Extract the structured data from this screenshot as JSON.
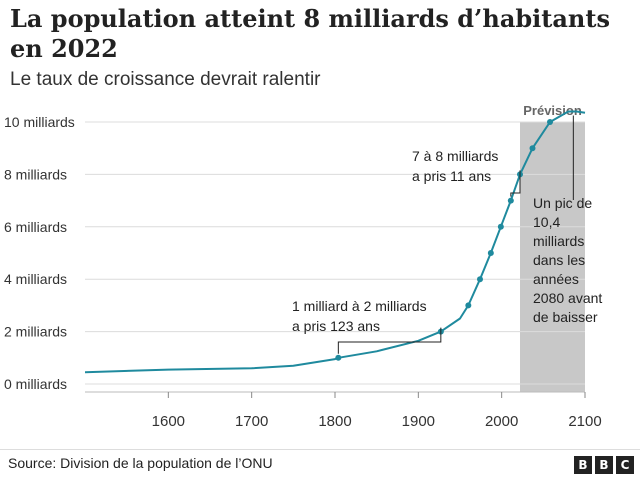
{
  "title": "La population atteint 8 milliards d’habitants en 2022",
  "subtitle": "Le taux de croissance devrait ralentir",
  "source": "Source: Division de la population de l’ONU",
  "logo_letters": [
    "B",
    "B",
    "C"
  ],
  "colors": {
    "line": "#1f8a9e",
    "forecast_band": "#c8c8c8",
    "grid": "#dcdcdc",
    "text": "#222222"
  },
  "chart_data": {
    "type": "line",
    "x_ticks": [
      1600,
      1700,
      1800,
      1900,
      2000,
      2100
    ],
    "y_ticks": [
      {
        "value": 0,
        "label": "0 milliards"
      },
      {
        "value": 2,
        "label": "2 milliards"
      },
      {
        "value": 4,
        "label": "4 milliards"
      },
      {
        "value": 6,
        "label": "6 milliards"
      },
      {
        "value": 8,
        "label": "8 milliards"
      },
      {
        "value": 10,
        "label": "10 milliards"
      }
    ],
    "xlim": [
      1500,
      2100
    ],
    "ylim": [
      0,
      10
    ],
    "grid": true,
    "series": [
      {
        "x": [
          1500,
          1600,
          1700,
          1750,
          1800,
          1804,
          1850,
          1900,
          1927,
          1950,
          1960,
          1974,
          1987,
          1999,
          2011,
          2022,
          2037,
          2058,
          2080,
          2090,
          2100
        ],
        "values": [
          0.45,
          0.55,
          0.6,
          0.7,
          0.95,
          1.0,
          1.25,
          1.65,
          2.0,
          2.5,
          3.0,
          4.0,
          5.0,
          6.0,
          7.0,
          8.0,
          9.0,
          10.0,
          10.4,
          10.4,
          10.35
        ]
      }
    ],
    "markers": [
      {
        "year": 1804,
        "value": 1
      },
      {
        "year": 1927,
        "value": 2
      },
      {
        "year": 1960,
        "value": 3
      },
      {
        "year": 1974,
        "value": 4
      },
      {
        "year": 1987,
        "value": 5
      },
      {
        "year": 1999,
        "value": 6
      },
      {
        "year": 2011,
        "value": 7
      },
      {
        "year": 2022,
        "value": 8
      },
      {
        "year": 2037,
        "value": 9
      },
      {
        "year": 2058,
        "value": 10
      }
    ],
    "forecast": {
      "label": "Prévision",
      "start": 2022,
      "end": 2100
    },
    "annotations": [
      {
        "id": "one-to-two",
        "lines": [
          "1 milliard à 2 milliards",
          "a pris 123 ans"
        ],
        "from": 1804,
        "to": 1927
      },
      {
        "id": "seven-to-eight",
        "lines": [
          "7 à 8 milliards",
          "a pris 11 ans"
        ],
        "from": 2011,
        "to": 2022
      },
      {
        "id": "peak",
        "lines": [
          "Un pic de",
          "10,4",
          "milliards",
          "dans les",
          "années",
          "2080 avant",
          "de baisser"
        ],
        "at": 2086
      }
    ]
  }
}
